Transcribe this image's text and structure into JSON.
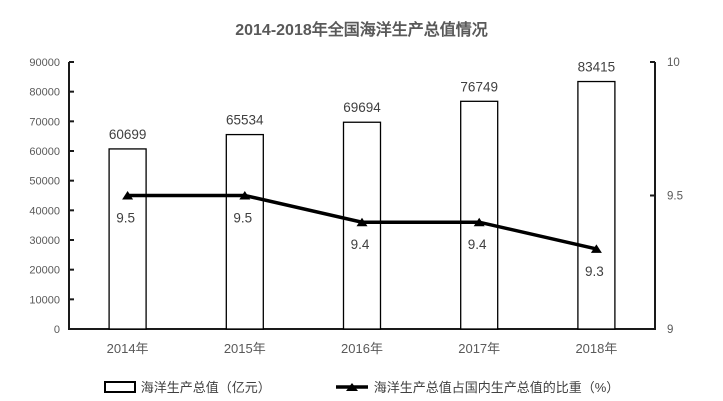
{
  "title": "2014-2018年全国海洋生产总值情况",
  "chart_data": {
    "type": "bar+line",
    "title": "2014-2018年全国海洋生产总值情况",
    "categories": [
      "2014年",
      "2015年",
      "2016年",
      "2017年",
      "2018年"
    ],
    "series": [
      {
        "name": "海洋生产总值（亿元）",
        "type": "bar",
        "axis": "left",
        "values": [
          60699,
          65534,
          69694,
          76749,
          83415
        ],
        "labels": [
          "60699",
          "65534",
          "69694",
          "76749",
          "83415"
        ]
      },
      {
        "name": "海洋生产总值占国内生产总值的比重（%）",
        "type": "line",
        "axis": "right",
        "values": [
          9.5,
          9.5,
          9.4,
          9.4,
          9.3
        ],
        "labels": [
          "9.5",
          "9.5",
          "9.4",
          "9.4",
          "9.3"
        ]
      }
    ],
    "left_axis": {
      "min": 0,
      "max": 90000,
      "step": 10000,
      "ticks": [
        0,
        10000,
        20000,
        30000,
        40000,
        50000,
        60000,
        70000,
        80000,
        90000
      ],
      "tick_labels": [
        "0",
        "10000",
        "20000",
        "30000",
        "40000",
        "50000",
        "60000",
        "70000",
        "80000",
        "90000"
      ]
    },
    "right_axis": {
      "min": 9,
      "max": 10,
      "ticks": [
        9,
        9.5,
        10
      ],
      "tick_labels": [
        "9",
        "9.5",
        "10"
      ]
    },
    "grid": false,
    "legend_position": "bottom",
    "colors": {
      "bar_fill": "#ffffff",
      "bar_stroke": "#000000",
      "line": "#000000",
      "axis": "#1a1a1a",
      "title_text": "#595959",
      "axis_text": "#595959",
      "data_label_text": "#404040"
    }
  }
}
